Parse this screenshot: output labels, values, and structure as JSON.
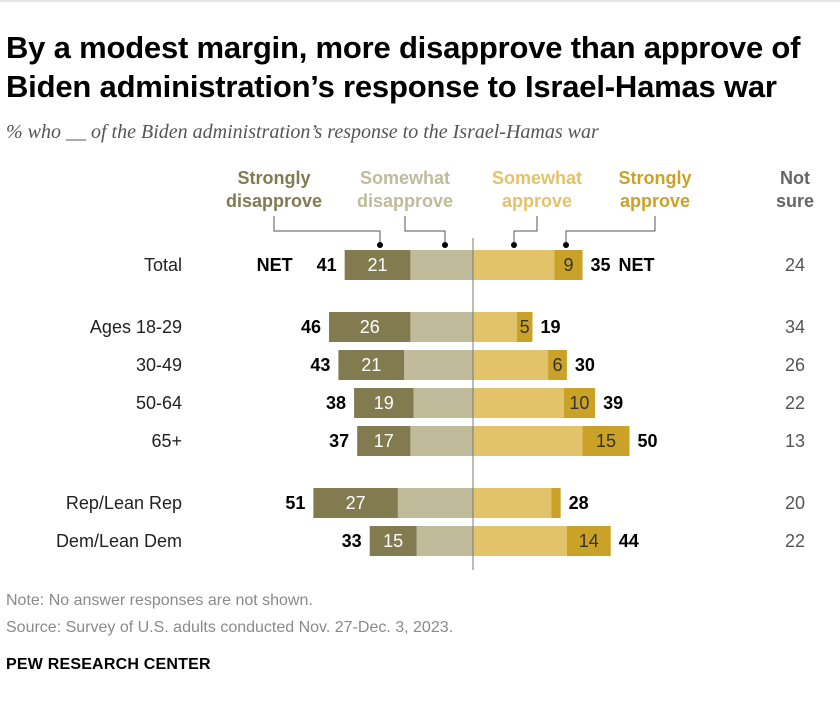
{
  "chart_data": {
    "type": "bar",
    "subtype": "diverging-stacked",
    "title": "By a modest margin, more disapprove than approve of Biden administration’s response to Israel-Hamas war",
    "subtitle": "% who __ of the Biden administration’s response to the Israel-Hamas war",
    "legend": {
      "strongly_disapprove": [
        "Strongly",
        "disapprove"
      ],
      "somewhat_disapprove": [
        "Somewhat",
        "disapprove"
      ],
      "somewhat_approve": [
        "Somewhat",
        "approve"
      ],
      "strongly_approve": [
        "Strongly",
        "approve"
      ],
      "not_sure": [
        "Not",
        "sure"
      ]
    },
    "net_label": "NET",
    "colors": {
      "strongly_disapprove": "#827b50",
      "somewhat_disapprove": "#bfbb9b",
      "somewhat_approve": "#e3c36a",
      "strongly_approve": "#c9a227",
      "axis": "#7a7a7a",
      "not_sure_text": "#555555",
      "bar_label_light": "#ffffff",
      "bar_label_dark": "#333333"
    },
    "rows": [
      {
        "label": "Total",
        "disapprove_net": 41,
        "strongly_disapprove": 21,
        "approve_net": 35,
        "strongly_approve": 9,
        "not_sure": 24,
        "show_net": true,
        "group_gap": false
      },
      {
        "label": "Ages 18-29",
        "disapprove_net": 46,
        "strongly_disapprove": 26,
        "approve_net": 19,
        "strongly_approve": 5,
        "not_sure": 34,
        "show_net": false,
        "group_gap": true
      },
      {
        "label": "30-49",
        "disapprove_net": 43,
        "strongly_disapprove": 21,
        "approve_net": 30,
        "strongly_approve": 6,
        "not_sure": 26,
        "show_net": false,
        "group_gap": false
      },
      {
        "label": "50-64",
        "disapprove_net": 38,
        "strongly_disapprove": 19,
        "approve_net": 39,
        "strongly_approve": 10,
        "not_sure": 22,
        "show_net": false,
        "group_gap": false
      },
      {
        "label": "65+",
        "disapprove_net": 37,
        "strongly_disapprove": 17,
        "approve_net": 50,
        "strongly_approve": 15,
        "not_sure": 13,
        "show_net": false,
        "group_gap": false
      },
      {
        "label": "Rep/Lean Rep",
        "disapprove_net": 51,
        "strongly_disapprove": 27,
        "approve_net": 28,
        "strongly_approve": null,
        "strongly_approve_value": 3,
        "not_sure": 20,
        "show_net": false,
        "group_gap": true
      },
      {
        "label": "Dem/Lean Dem",
        "disapprove_net": 33,
        "strongly_disapprove": 15,
        "approve_net": 44,
        "strongly_approve": 14,
        "not_sure": 22,
        "show_net": false,
        "group_gap": false
      }
    ]
  },
  "notes": {
    "note": "Note: No answer responses are not shown.",
    "source": "Source: Survey of U.S. adults conducted Nov. 27-Dec. 3, 2023."
  },
  "brand": "PEW RESEARCH CENTER"
}
